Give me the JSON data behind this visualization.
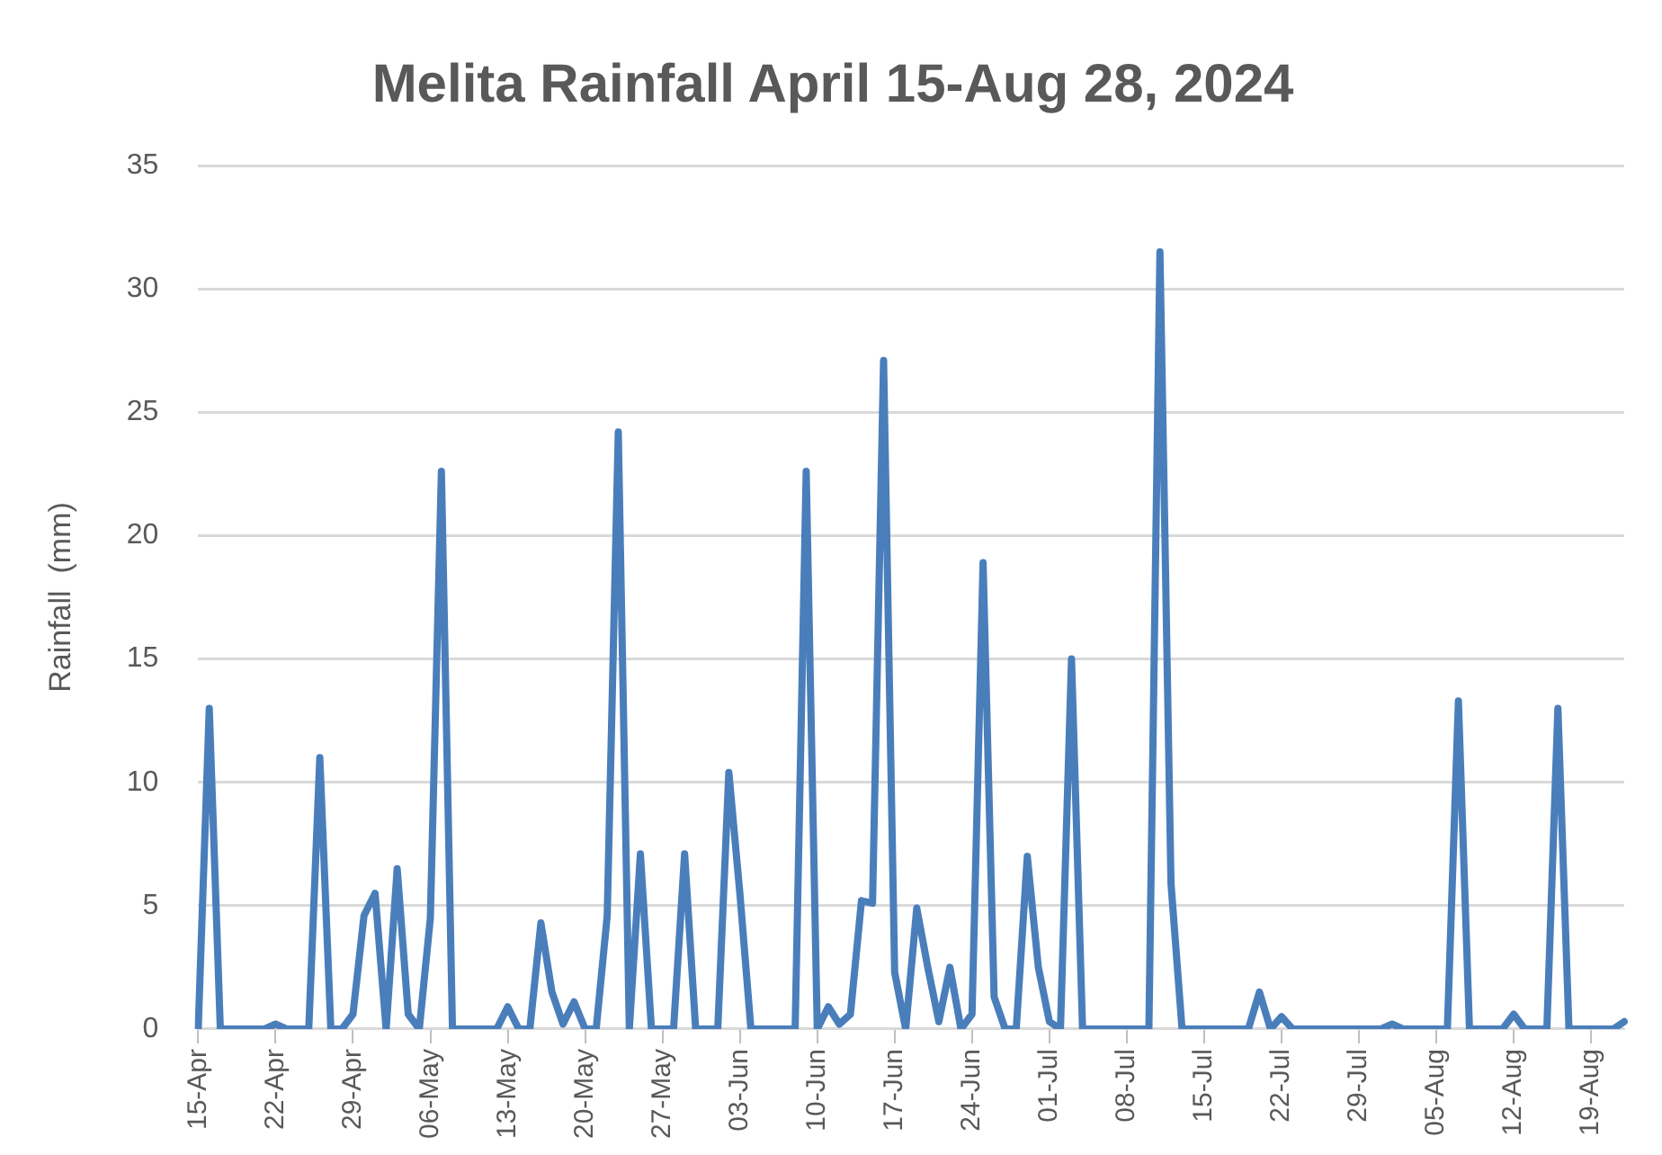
{
  "chart_data": {
    "type": "line",
    "title": "Melita Rainfall April 15-Aug 28, 2024",
    "ylabel": "Rainfall  (mm)",
    "categories": [
      "15-Apr",
      null,
      null,
      null,
      null,
      null,
      null,
      "22-Apr",
      null,
      null,
      null,
      null,
      null,
      null,
      "29-Apr",
      null,
      null,
      null,
      null,
      null,
      null,
      "06-May",
      null,
      null,
      null,
      null,
      null,
      null,
      "13-May",
      null,
      null,
      null,
      null,
      null,
      null,
      "20-May",
      null,
      null,
      null,
      null,
      null,
      null,
      "27-May",
      null,
      null,
      null,
      null,
      null,
      null,
      "03-Jun",
      null,
      null,
      null,
      null,
      null,
      null,
      "10-Jun",
      null,
      null,
      null,
      null,
      null,
      null,
      "17-Jun",
      null,
      null,
      null,
      null,
      null,
      null,
      "24-Jun",
      null,
      null,
      null,
      null,
      null,
      null,
      "01-Jul",
      null,
      null,
      null,
      null,
      null,
      null,
      "08-Jul",
      null,
      null,
      null,
      null,
      null,
      null,
      "15-Jul",
      null,
      null,
      null,
      null,
      null,
      null,
      "22-Jul",
      null,
      null,
      null,
      null,
      null,
      null,
      "29-Jul",
      null,
      null,
      null,
      null,
      null,
      null,
      "05-Aug",
      null,
      null,
      null,
      null,
      null,
      null,
      "12-Aug",
      null,
      null,
      null,
      null,
      null,
      null,
      "19-Aug",
      null,
      null,
      null
    ],
    "series": [
      {
        "color": "#4a7ebb",
        "values": [
          0,
          13,
          0,
          0,
          0,
          0,
          0,
          0.2,
          0,
          0,
          0,
          11,
          0,
          0,
          0.6,
          4.6,
          5.5,
          0,
          6.5,
          0.6,
          0,
          4.5,
          22.6,
          0,
          0,
          0,
          0,
          0,
          0.9,
          0,
          0,
          4.3,
          1.5,
          0.2,
          1.1,
          0,
          0,
          4.6,
          24.2,
          0,
          7.1,
          0,
          0,
          0,
          7.1,
          0,
          0,
          0,
          10.4,
          5.5,
          0,
          0,
          0,
          0,
          0,
          22.6,
          0,
          0.9,
          0.2,
          0.6,
          5.2,
          5.1,
          27.1,
          2.3,
          0,
          4.9,
          2.5,
          0.3,
          2.5,
          0,
          0.6,
          18.9,
          1.3,
          0,
          0,
          7,
          2.5,
          0.3,
          0,
          15,
          0,
          0,
          0,
          0,
          0,
          0,
          0,
          31.5,
          5.9,
          0,
          0,
          0,
          0,
          0,
          0,
          0,
          1.5,
          0,
          0.5,
          0,
          0,
          0,
          0,
          0,
          0,
          0,
          0,
          0,
          0.2,
          0,
          0,
          0,
          0,
          0,
          13.3,
          0,
          0,
          0,
          0,
          0.6,
          0,
          0,
          0,
          13,
          0,
          0,
          0,
          0,
          0,
          0.3
        ]
      }
    ],
    "ylim": [
      0,
      35
    ],
    "yticks": [
      0,
      5,
      10,
      15,
      20,
      25,
      30,
      35
    ],
    "grid": "y",
    "legend": false,
    "marker": "none",
    "line_style": "solid"
  }
}
